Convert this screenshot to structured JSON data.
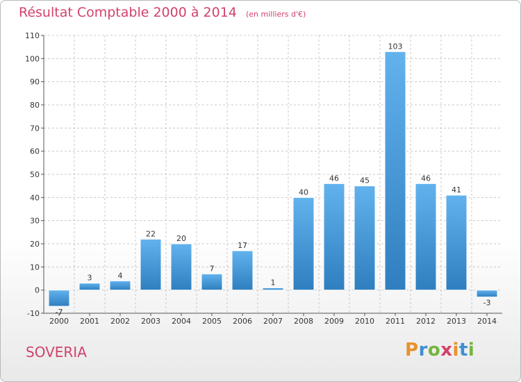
{
  "title": "Résultat Comptable 2000 à 2014",
  "subtitle": "(en milliers d'€)",
  "place": "SOVERIA",
  "brand": {
    "letters": [
      "P",
      "r",
      "o",
      "x",
      "i",
      "t",
      "i"
    ],
    "colors": [
      "#e8912c",
      "#3f8fd0",
      "#74b53e",
      "#d2426a",
      "#e8912c",
      "#3f8fd0",
      "#74b53e"
    ]
  },
  "colors": {
    "title": "#d2426a",
    "bar_light": "#62b2ee",
    "bar_dark": "#2f7fc0",
    "grid": "#c8c8c8"
  },
  "chart_data": {
    "type": "bar",
    "categories": [
      "2000",
      "2001",
      "2002",
      "2003",
      "2004",
      "2005",
      "2006",
      "2007",
      "2008",
      "2009",
      "2010",
      "2011",
      "2012",
      "2013",
      "2014"
    ],
    "values": [
      -7,
      3,
      4,
      22,
      20,
      7,
      17,
      1,
      40,
      46,
      45,
      103,
      46,
      41,
      -3
    ],
    "ylim": [
      -10,
      110
    ],
    "yticks": [
      -10,
      0,
      10,
      20,
      30,
      40,
      50,
      60,
      70,
      80,
      90,
      100,
      110
    ],
    "grid": true,
    "value_labels": true
  }
}
